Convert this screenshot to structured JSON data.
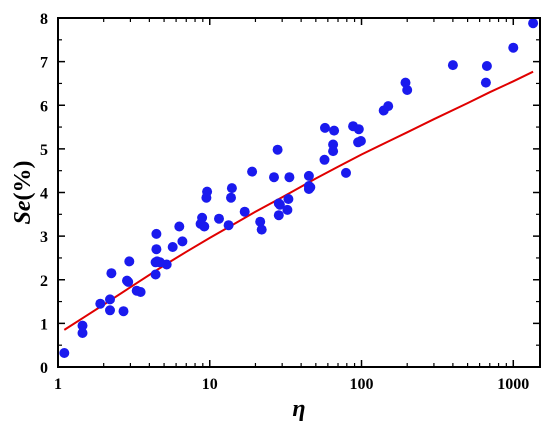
{
  "chart_data": {
    "type": "scatter",
    "xlabel": "η",
    "ylabel_italic": "Se",
    "ylabel_rest": "(%)",
    "xscale": "log",
    "xlim": [
      1,
      1500
    ],
    "ylim": [
      0,
      8
    ],
    "x_ticks": [
      1,
      10,
      100,
      1000
    ],
    "x_tick_labels": [
      "1",
      "10",
      "100",
      "1000"
    ],
    "y_ticks": [
      0,
      1,
      2,
      3,
      4,
      5,
      6,
      7,
      8
    ],
    "y_tick_labels": [
      "0",
      "1",
      "2",
      "3",
      "4",
      "5",
      "6",
      "7",
      "8"
    ],
    "grid": false,
    "colors": {
      "points": "#1a1aee",
      "fit": "#e00000",
      "axes": "#000000"
    },
    "series": [
      {
        "kind": "points",
        "x": [
          1.1,
          1.45,
          1.45,
          1.9,
          2.2,
          2.2,
          2.25,
          2.7,
          2.85,
          2.9,
          2.95,
          3.3,
          3.5,
          4.4,
          4.4,
          4.45,
          4.45,
          4.5,
          4.7,
          5.2,
          5.7,
          6.3,
          6.6,
          8.7,
          8.9,
          9.2,
          9.5,
          9.6,
          11.5,
          13.3,
          13.8,
          14.0,
          17.0,
          19.0,
          21.5,
          22.0,
          26.5,
          28.0,
          28.5,
          28.5,
          29.0,
          32.5,
          33.0,
          33.5,
          45.0,
          45.0,
          45.0,
          46.0,
          57.0,
          57.5,
          65.0,
          65.0,
          66.0,
          79.0,
          88.0,
          95.0,
          96.0,
          99.0,
          140.0,
          150.0,
          195.0,
          200.0,
          400.0,
          660.0,
          670.0,
          1000.0,
          1350.0
        ],
        "y": [
          0.32,
          0.78,
          0.95,
          1.45,
          1.55,
          1.3,
          2.15,
          1.28,
          1.98,
          1.95,
          2.42,
          1.75,
          1.72,
          2.12,
          2.4,
          2.7,
          3.05,
          2.42,
          2.4,
          2.35,
          2.75,
          3.22,
          2.88,
          3.28,
          3.42,
          3.22,
          3.88,
          4.02,
          3.4,
          3.25,
          3.88,
          4.1,
          3.56,
          4.48,
          3.33,
          3.15,
          4.35,
          4.98,
          3.48,
          3.75,
          3.72,
          3.6,
          3.85,
          4.35,
          4.08,
          4.15,
          4.38,
          4.12,
          4.75,
          5.48,
          4.95,
          5.1,
          5.42,
          4.45,
          5.52,
          5.15,
          5.45,
          5.18,
          5.88,
          5.98,
          6.52,
          6.35,
          6.92,
          6.52,
          6.9,
          7.32,
          7.88
        ]
      },
      {
        "kind": "fit-line",
        "x": [
          1.1,
          1.5,
          2,
          3,
          5,
          7,
          10,
          15,
          20,
          30,
          50,
          70,
          100,
          150,
          200,
          300,
          500,
          700,
          1000,
          1350
        ],
        "y": [
          0.85,
          1.15,
          1.43,
          1.83,
          2.33,
          2.64,
          2.96,
          3.31,
          3.56,
          3.89,
          4.32,
          4.59,
          4.87,
          5.17,
          5.38,
          5.68,
          6.05,
          6.3,
          6.55,
          6.77
        ]
      }
    ]
  }
}
